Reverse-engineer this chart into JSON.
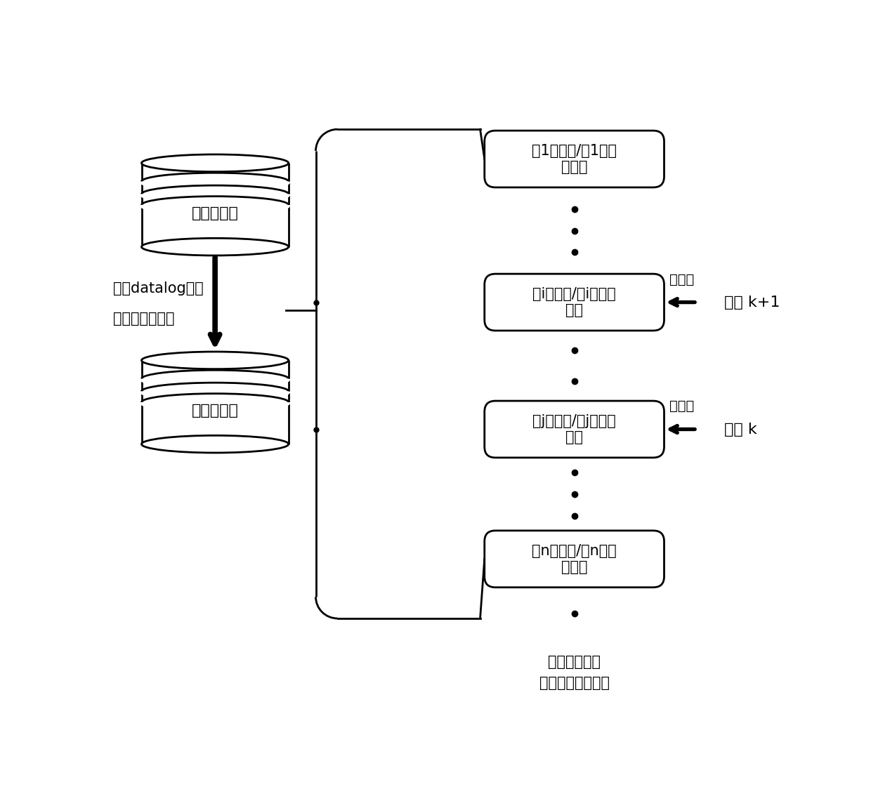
{
  "fig_width": 12.4,
  "fig_height": 11.24,
  "bg_color": "#ffffff",
  "db_ext_label": "外延数据库",
  "db_int_label": "内延数据库",
  "arrow_label_line1": "根据datalog规则",
  "arrow_label_line2": "进行实例化推导",
  "brace_label_line1": "根据迭代次数",
  "brace_label_line2": "动态增加计数结构",
  "box1_label": "第1次迭代/第1层计\n数结构",
  "boxi_label": "第i次迭代/第i层计数\n结构",
  "boxj_label": "第j次迭代/第j层计数\n结构",
  "boxn_label": "第n次迭代/第n层计\n数结构",
  "lock_i_label": "排它锁",
  "lock_j_label": "排他锁",
  "thread_k1_label": "线程 k+1",
  "thread_k_label": "线程 k",
  "lw": 2.0,
  "lw_bold": 5.5,
  "font_size": 15
}
